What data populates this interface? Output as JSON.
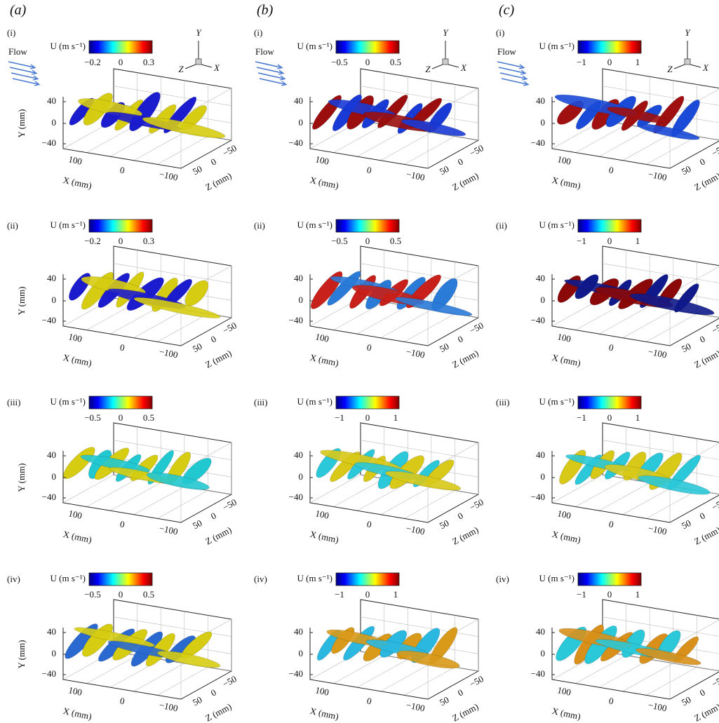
{
  "columns": [
    {
      "label": "(a)",
      "panels": [
        {
          "label": "(i)",
          "colorbar": {
            "label": "U (m s⁻¹)",
            "ticks": [
              "−0.2",
              "0",
              "0.3"
            ]
          }
        },
        {
          "label": "(ii)",
          "colorbar": {
            "label": "U (m s⁻¹)",
            "ticks": [
              "−0.2",
              "0",
              "0.3"
            ]
          }
        },
        {
          "label": "(iii)",
          "colorbar": {
            "label": "U (m s⁻¹)",
            "ticks": [
              "−0.5",
              "0",
              "0.5"
            ]
          }
        },
        {
          "label": "(iv)",
          "colorbar": {
            "label": "U (m s⁻¹)",
            "ticks": [
              "−0.5",
              "0",
              "0.5"
            ]
          }
        }
      ]
    },
    {
      "label": "(b)",
      "panels": [
        {
          "label": "(i)",
          "colorbar": {
            "label": "U (m s⁻¹)",
            "ticks": [
              "−0.5",
              "0",
              "0.5"
            ]
          }
        },
        {
          "label": "(ii)",
          "colorbar": {
            "label": "U (m s⁻¹)",
            "ticks": [
              "−0.5",
              "0",
              "0.5"
            ]
          }
        },
        {
          "label": "(iii)",
          "colorbar": {
            "label": "U (m s⁻¹)",
            "ticks": [
              "−1",
              "0",
              "1"
            ]
          }
        },
        {
          "label": "(iv)",
          "colorbar": {
            "label": "U (m s⁻¹)",
            "ticks": [
              "−1",
              "0",
              "1"
            ]
          }
        }
      ]
    },
    {
      "label": "(c)",
      "panels": [
        {
          "label": "(i)",
          "colorbar": {
            "label": "U (m s⁻¹)",
            "ticks": [
              "−1",
              "0",
              "1"
            ]
          }
        },
        {
          "label": "(ii)",
          "colorbar": {
            "label": "U (m s⁻¹)",
            "ticks": [
              "−1",
              "0",
              "1"
            ]
          }
        },
        {
          "label": "(iii)",
          "colorbar": {
            "label": "U (m s⁻¹)",
            "ticks": [
              "−1",
              "0",
              "1"
            ]
          }
        },
        {
          "label": "(iv)",
          "colorbar": {
            "label": "U (m s⁻¹)",
            "ticks": [
              "−1",
              "0",
              "1"
            ]
          }
        }
      ]
    }
  ],
  "flow_label": "Flow",
  "triad": {
    "y": "Y",
    "z": "Z",
    "x": "X"
  },
  "axes": {
    "y_label": "Y (mm)",
    "x_label": "X (mm)",
    "z_label": "Z (mm)",
    "y_ticks": [
      "40",
      "0",
      "−40"
    ],
    "x_ticks": [
      "100",
      "0",
      "−100"
    ],
    "z_ticks": [
      "50",
      "0",
      "−50"
    ]
  }
}
